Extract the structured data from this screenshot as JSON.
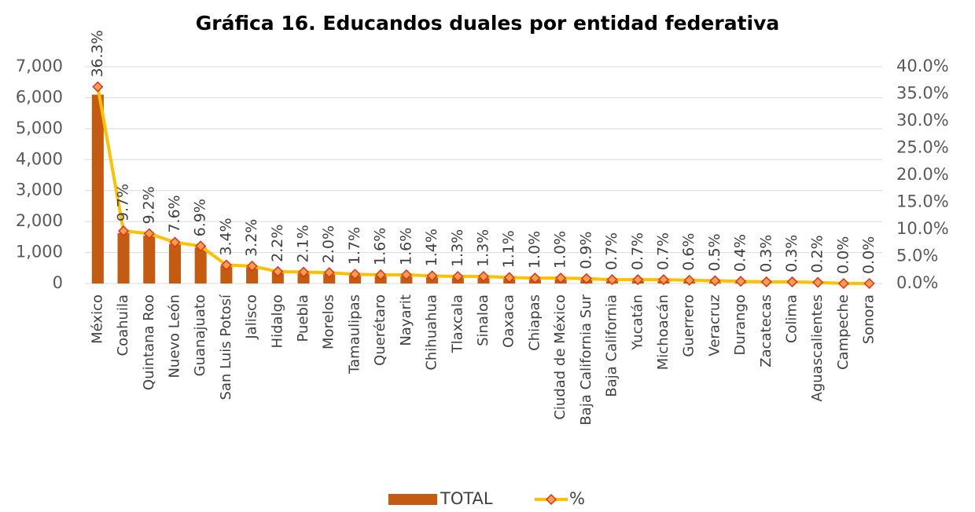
{
  "chart_data": {
    "type": "bar_line",
    "title": "Gráfica 16. Educandos duales por entidad federativa",
    "categories": [
      "México",
      "Coahuila",
      "Quintana Roo",
      "Nuevo León",
      "Guanajuato",
      "San Luis Potosí",
      "Jalisco",
      "Hidalgo",
      "Puebla",
      "Morelos",
      "Tamaulipas",
      "Querétaro",
      "Nayarit",
      "Chihuahua",
      "Tlaxcala",
      "Sinaloa",
      "Oaxaca",
      "Chiapas",
      "Ciudad de México",
      "Baja California Sur",
      "Baja California",
      "Yucatán",
      "Michoacán",
      "Guerrero",
      "Veracruz",
      "Durango",
      "Zacatecas",
      "Colima",
      "Aguascalientes",
      "Campeche",
      "Sonora"
    ],
    "series": [
      {
        "name": "TOTAL",
        "color": "#c55a11",
        "values": [
          6100,
          1630,
          1545,
          1277,
          1160,
          571,
          538,
          370,
          353,
          336,
          286,
          269,
          269,
          235,
          218,
          218,
          185,
          168,
          168,
          151,
          118,
          118,
          118,
          101,
          84,
          67,
          50,
          50,
          34,
          5,
          3
        ]
      },
      {
        "name": "%",
        "axis": "y2",
        "color": "#ffc000",
        "marker_color": "#f4a04a",
        "marker_edge_color": "#e0301e",
        "values": [
          36.3,
          9.7,
          9.2,
          7.6,
          6.9,
          3.4,
          3.2,
          2.2,
          2.1,
          2.0,
          1.7,
          1.6,
          1.6,
          1.4,
          1.3,
          1.3,
          1.1,
          1.0,
          1.0,
          0.9,
          0.7,
          0.7,
          0.7,
          0.6,
          0.5,
          0.4,
          0.3,
          0.3,
          0.2,
          0.0,
          0.0
        ],
        "value_labels": [
          "36.3%",
          "9.7%",
          "9.2%",
          "7.6%",
          "6.9%",
          "3.4%",
          "3.2%",
          "2.2%",
          "2.1%",
          "2.0%",
          "1.7%",
          "1.6%",
          "1.6%",
          "1.4%",
          "1.3%",
          "1.3%",
          "1.1%",
          "1.0%",
          "1.0%",
          "0.9%",
          "0.7%",
          "0.7%",
          "0.7%",
          "0.6%",
          "0.5%",
          "0.4%",
          "0.3%",
          "0.3%",
          "0.2%",
          "0.0%",
          "0.0%"
        ]
      }
    ],
    "ylim": [
      0,
      7000
    ],
    "yticks": [
      0,
      {
        "value": 1000,
        "label": "1,000"
      },
      {
        "value": 2000,
        "label": "2,000"
      },
      {
        "value": 3000,
        "label": "3,000"
      },
      {
        "value": 4000,
        "label": "4,000"
      },
      {
        "value": 5000,
        "label": "5,000"
      },
      {
        "value": 6000,
        "label": "6,000"
      },
      {
        "value": 7000,
        "label": "7,000"
      }
    ],
    "y2lim": [
      0,
      40
    ],
    "y2ticks": [
      {
        "value": 0,
        "label": "0.0%"
      },
      {
        "value": 5,
        "label": "5.0%"
      },
      {
        "value": 10,
        "label": "10.0%"
      },
      {
        "value": 15,
        "label": "15.0%"
      },
      {
        "value": 20,
        "label": "20.0%"
      },
      {
        "value": 25,
        "label": "25.0%"
      },
      {
        "value": 30,
        "label": "30.0%"
      },
      {
        "value": 35,
        "label": "35.0%"
      },
      {
        "value": 40,
        "label": "40.0%"
      }
    ],
    "grid": true,
    "legend": "bottom"
  }
}
